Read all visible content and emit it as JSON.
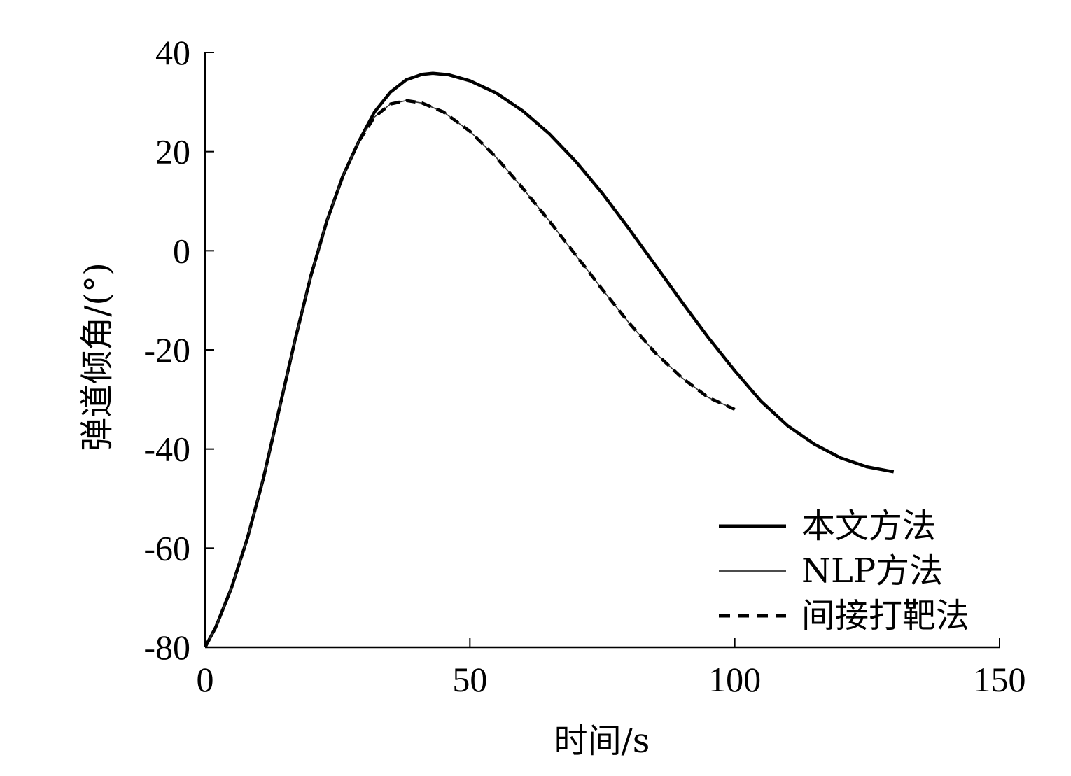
{
  "chart_data": {
    "type": "line",
    "title": "",
    "xlabel": "时间/s",
    "ylabel": "弹道倾角/(°)",
    "xlim": [
      0,
      150
    ],
    "ylim": [
      -80,
      40
    ],
    "xticks": [
      0,
      50,
      100,
      150
    ],
    "yticks": [
      40,
      20,
      0,
      -20,
      -40,
      -60,
      -80
    ],
    "xtick_labels": [
      "0",
      "50",
      "100",
      "150"
    ],
    "ytick_labels": [
      "40",
      "20",
      "0",
      "-20",
      "-40",
      "-60",
      "-80"
    ],
    "grid": false,
    "legend_position": "bottom-right",
    "series": [
      {
        "name": "本文方法",
        "style": "solid-thick",
        "color": "#000000",
        "x": [
          0,
          2,
          5,
          8,
          11,
          14,
          17,
          20,
          23,
          26,
          29,
          32,
          35,
          38,
          41,
          43,
          46,
          50,
          55,
          60,
          65,
          70,
          75,
          80,
          85,
          90,
          95,
          100,
          105,
          110,
          115,
          120,
          125,
          130
        ],
        "y": [
          -80,
          -76,
          -68,
          -58,
          -46,
          -32,
          -18,
          -5,
          6,
          15,
          22,
          28,
          32,
          34.5,
          35.6,
          35.8,
          35.5,
          34.3,
          31.8,
          28.2,
          23.6,
          18,
          11.6,
          4.5,
          -2.9,
          -10.3,
          -17.5,
          -24.2,
          -30.4,
          -35.3,
          -39,
          -41.8,
          -43.6,
          -44.6
        ]
      },
      {
        "name": "NLP方法",
        "style": "solid-thin",
        "color": "#000000",
        "x": [
          0,
          2,
          5,
          8,
          11,
          14,
          17,
          20,
          23,
          26,
          29,
          32,
          35,
          38,
          41,
          45,
          50,
          55,
          60,
          65,
          70,
          75,
          80,
          85,
          90,
          95,
          100
        ],
        "y": [
          -80,
          -76,
          -68,
          -58,
          -46,
          -32,
          -18,
          -5,
          6,
          15,
          22,
          27,
          29.6,
          30.3,
          29.8,
          28,
          24.1,
          18.8,
          12.6,
          6,
          -0.9,
          -7.8,
          -14.5,
          -20.6,
          -25.6,
          -29.6,
          -32
        ]
      },
      {
        "name": "间接打靶法",
        "style": "dashed",
        "color": "#000000",
        "x": [
          0,
          2,
          5,
          8,
          11,
          14,
          17,
          20,
          23,
          26,
          29,
          32,
          35,
          38,
          41,
          45,
          50,
          55,
          60,
          65,
          70,
          75,
          80,
          85,
          90,
          95,
          100
        ],
        "y": [
          -80,
          -76,
          -68,
          -58,
          -46,
          -32,
          -18,
          -5,
          6,
          15,
          22,
          27,
          29.6,
          30.3,
          29.8,
          28,
          24.1,
          18.8,
          12.6,
          6,
          -0.9,
          -7.8,
          -14.5,
          -20.6,
          -25.6,
          -29.6,
          -32
        ]
      }
    ]
  }
}
